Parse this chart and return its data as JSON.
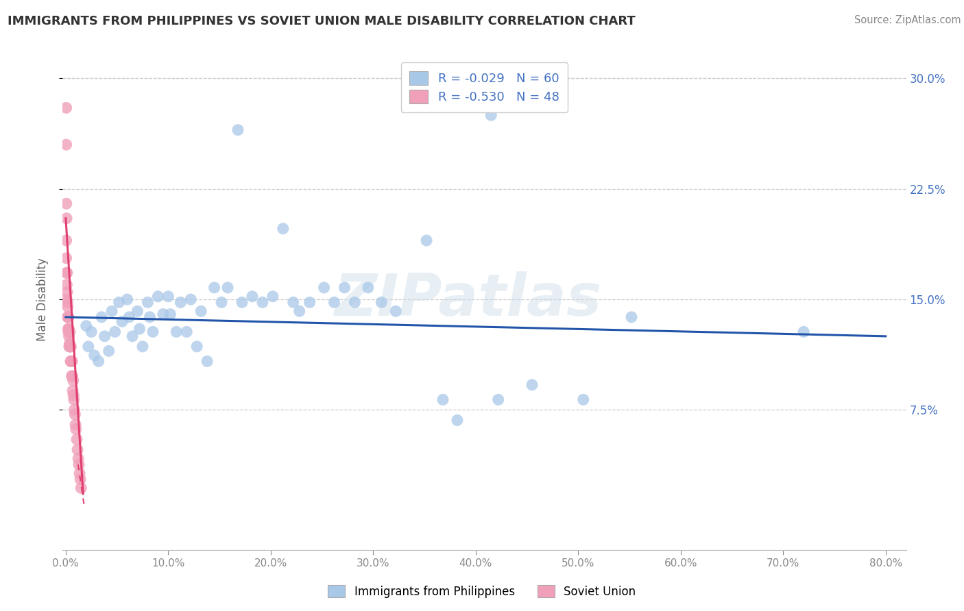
{
  "title": "IMMIGRANTS FROM PHILIPPINES VS SOVIET UNION MALE DISABILITY CORRELATION CHART",
  "source": "Source: ZipAtlas.com",
  "ylabel": "Male Disability",
  "xlim": [
    -0.003,
    0.82
  ],
  "ylim": [
    -0.02,
    0.32
  ],
  "ytick_vals": [
    0.075,
    0.15,
    0.225,
    0.3
  ],
  "ytick_labels_right": [
    "7.5%",
    "15.0%",
    "22.5%",
    "30.0%"
  ],
  "xtick_vals": [
    0.0,
    0.1,
    0.2,
    0.3,
    0.4,
    0.5,
    0.6,
    0.7,
    0.8
  ],
  "xtick_labels": [
    "0.0%",
    "10.0%",
    "20.0%",
    "30.0%",
    "40.0%",
    "50.0%",
    "60.0%",
    "70.0%",
    "80.0%"
  ],
  "philippines_dot_color": "#a8c8e8",
  "soviet_dot_color": "#f0a0b8",
  "philippines_line_color": "#2255aa",
  "soviet_line_color": "#e04070",
  "R_philippines": -0.029,
  "N_philippines": 60,
  "R_soviet": -0.53,
  "N_soviet": 48,
  "legend_label1": "Immigrants from Philippines",
  "legend_label2": "Soviet Union",
  "watermark": "ZIPatlas",
  "text_color_blue": "#4472c4",
  "philippines_x": [
    0.02,
    0.022,
    0.025,
    0.028,
    0.032,
    0.035,
    0.038,
    0.042,
    0.045,
    0.048,
    0.052,
    0.055,
    0.06,
    0.062,
    0.065,
    0.07,
    0.072,
    0.075,
    0.08,
    0.082,
    0.085,
    0.09,
    0.095,
    0.1,
    0.102,
    0.108,
    0.112,
    0.118,
    0.122,
    0.128,
    0.132,
    0.138,
    0.145,
    0.152,
    0.158,
    0.172,
    0.182,
    0.192,
    0.202,
    0.212,
    0.222,
    0.228,
    0.238,
    0.252,
    0.262,
    0.272,
    0.282,
    0.295,
    0.308,
    0.322,
    0.352,
    0.382,
    0.168,
    0.368,
    0.422,
    0.455,
    0.505,
    0.552,
    0.72,
    0.415
  ],
  "philippines_y": [
    0.132,
    0.118,
    0.128,
    0.112,
    0.108,
    0.138,
    0.125,
    0.115,
    0.142,
    0.128,
    0.148,
    0.135,
    0.15,
    0.138,
    0.125,
    0.142,
    0.13,
    0.118,
    0.148,
    0.138,
    0.128,
    0.152,
    0.14,
    0.152,
    0.14,
    0.128,
    0.148,
    0.128,
    0.15,
    0.118,
    0.142,
    0.108,
    0.158,
    0.148,
    0.158,
    0.148,
    0.152,
    0.148,
    0.152,
    0.198,
    0.148,
    0.142,
    0.148,
    0.158,
    0.148,
    0.158,
    0.148,
    0.158,
    0.148,
    0.142,
    0.19,
    0.068,
    0.265,
    0.082,
    0.082,
    0.092,
    0.082,
    0.138,
    0.128,
    0.275
  ],
  "soviet_x": [
    0.0005,
    0.0005,
    0.0008,
    0.001,
    0.001,
    0.0012,
    0.0014,
    0.0016,
    0.0018,
    0.002,
    0.0022,
    0.0024,
    0.0026,
    0.0028,
    0.003,
    0.0032,
    0.0034,
    0.0036,
    0.0038,
    0.004,
    0.0042,
    0.0045,
    0.0048,
    0.005,
    0.0052,
    0.0055,
    0.0058,
    0.0062,
    0.0065,
    0.0068,
    0.0072,
    0.0075,
    0.008,
    0.0085,
    0.009,
    0.0095,
    0.01,
    0.0108,
    0.0115,
    0.0122,
    0.0128,
    0.0135,
    0.0142,
    0.015,
    0.0005,
    0.0005,
    0.0006,
    0.0008
  ],
  "soviet_y": [
    0.19,
    0.178,
    0.168,
    0.16,
    0.15,
    0.168,
    0.155,
    0.148,
    0.138,
    0.145,
    0.138,
    0.13,
    0.128,
    0.138,
    0.13,
    0.125,
    0.118,
    0.128,
    0.12,
    0.128,
    0.118,
    0.118,
    0.108,
    0.118,
    0.108,
    0.108,
    0.098,
    0.108,
    0.098,
    0.088,
    0.095,
    0.085,
    0.082,
    0.075,
    0.072,
    0.065,
    0.062,
    0.055,
    0.048,
    0.042,
    0.038,
    0.032,
    0.028,
    0.022,
    0.28,
    0.255,
    0.215,
    0.205
  ],
  "phil_line_x": [
    0.0,
    0.8
  ],
  "phil_line_y": [
    0.138,
    0.125
  ],
  "sov_line_x": [
    0.0,
    0.017
  ],
  "sov_line_y": [
    0.205,
    0.018
  ]
}
